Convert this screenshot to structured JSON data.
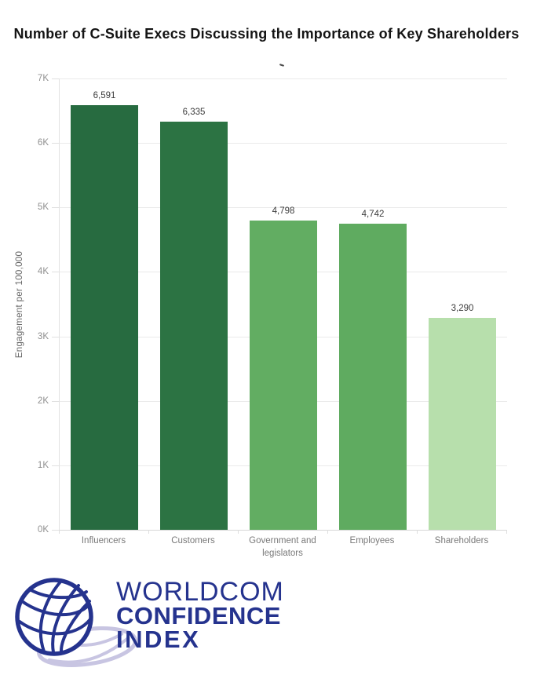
{
  "title": "Number of C-Suite Execs Discussing the Importance of Key Shareholders",
  "chart_data": {
    "type": "bar",
    "title": "Number of C-Suite Execs Discussing the Importance of Key Shareholders",
    "categories": [
      "Influencers",
      "Customers",
      "Government and legislators",
      "Employees",
      "Shareholders"
    ],
    "values": [
      6591,
      6335,
      4798,
      4742,
      3290
    ],
    "value_labels": [
      "6,591",
      "6,335",
      "4,798",
      "4,742",
      "3,290"
    ],
    "bar_colors": [
      "#276b40",
      "#2c7343",
      "#62ad62",
      "#5fab60",
      "#b7dfac"
    ],
    "xlabel": "",
    "ylabel": "Engagement per 100,000",
    "ylim": [
      0,
      7000
    ],
    "ytick_interval": 1000,
    "ytick_labels": [
      "0K",
      "1K",
      "2K",
      "3K",
      "4K",
      "5K",
      "6K",
      "7K"
    ],
    "grid": true,
    "legend": "none"
  },
  "logo": {
    "line1": "WORLDCOM",
    "line2": "CONFIDENCE",
    "line3": "INDEX",
    "navy": "#25338e",
    "lavender": "#c8c5e2"
  }
}
